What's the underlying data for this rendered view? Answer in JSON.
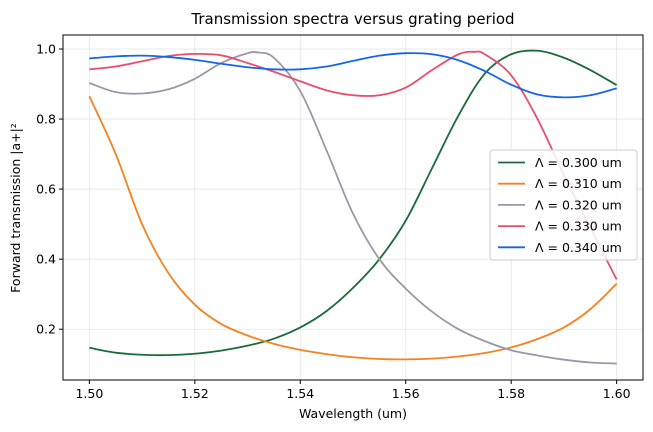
{
  "chart_data": {
    "type": "line",
    "title": "Transmission spectra versus grating period",
    "xlabel": "Wavelength (um)",
    "ylabel": "Forward transmission |a+|²",
    "xlim": [
      1.495,
      1.605
    ],
    "ylim": [
      0.055,
      1.04
    ],
    "xticks": [
      1.5,
      1.52,
      1.54,
      1.56,
      1.58,
      1.6
    ],
    "xtick_labels": [
      "1.50",
      "1.52",
      "1.54",
      "1.56",
      "1.58",
      "1.60"
    ],
    "yticks": [
      0.2,
      0.4,
      0.6,
      0.8,
      1.0
    ],
    "ytick_labels": [
      "0.2",
      "0.4",
      "0.6",
      "0.8",
      "1.0"
    ],
    "grid": true,
    "legend_position": "center-right",
    "series": [
      {
        "name": "Λ = 0.300 um",
        "color": "#1b6b3a",
        "x": [
          1.5,
          1.505,
          1.51,
          1.515,
          1.52,
          1.525,
          1.53,
          1.535,
          1.54,
          1.545,
          1.55,
          1.555,
          1.56,
          1.565,
          1.57,
          1.575,
          1.58,
          1.585,
          1.59,
          1.595,
          1.6
        ],
        "y": [
          0.147,
          0.133,
          0.127,
          0.126,
          0.13,
          0.139,
          0.153,
          0.173,
          0.205,
          0.252,
          0.318,
          0.4,
          0.51,
          0.66,
          0.81,
          0.93,
          0.985,
          0.995,
          0.975,
          0.94,
          0.897
        ]
      },
      {
        "name": "Λ = 0.310 um",
        "color": "#f5821f",
        "x": [
          1.5,
          1.505,
          1.51,
          1.515,
          1.52,
          1.525,
          1.53,
          1.535,
          1.54,
          1.545,
          1.55,
          1.555,
          1.56,
          1.565,
          1.57,
          1.575,
          1.58,
          1.585,
          1.59,
          1.595,
          1.6
        ],
        "y": [
          0.865,
          0.7,
          0.5,
          0.36,
          0.27,
          0.215,
          0.182,
          0.158,
          0.141,
          0.129,
          0.12,
          0.115,
          0.114,
          0.116,
          0.122,
          0.132,
          0.148,
          0.172,
          0.205,
          0.257,
          0.33
        ]
      },
      {
        "name": "Λ = 0.320 um",
        "color": "#9b97a8",
        "x": [
          1.5,
          1.505,
          1.51,
          1.515,
          1.52,
          1.525,
          1.53,
          1.532,
          1.535,
          1.54,
          1.545,
          1.55,
          1.555,
          1.56,
          1.565,
          1.57,
          1.575,
          1.58,
          1.585,
          1.59,
          1.595,
          1.6
        ],
        "y": [
          0.903,
          0.877,
          0.873,
          0.885,
          0.915,
          0.96,
          0.988,
          0.99,
          0.975,
          0.88,
          0.71,
          0.53,
          0.4,
          0.316,
          0.25,
          0.2,
          0.166,
          0.14,
          0.125,
          0.113,
          0.105,
          0.102
        ]
      },
      {
        "name": "Λ = 0.330 um",
        "color": "#e94e6b",
        "x": [
          1.5,
          1.505,
          1.51,
          1.515,
          1.52,
          1.525,
          1.53,
          1.535,
          1.54,
          1.545,
          1.55,
          1.555,
          1.56,
          1.565,
          1.57,
          1.573,
          1.575,
          1.58,
          1.585,
          1.59,
          1.595,
          1.6
        ],
        "y": [
          0.942,
          0.95,
          0.965,
          0.98,
          0.986,
          0.982,
          0.96,
          0.935,
          0.908,
          0.882,
          0.868,
          0.868,
          0.89,
          0.94,
          0.985,
          0.992,
          0.985,
          0.925,
          0.8,
          0.64,
          0.49,
          0.342
        ]
      },
      {
        "name": "Λ = 0.340 um",
        "color": "#1565e8",
        "x": [
          1.5,
          1.505,
          1.51,
          1.515,
          1.52,
          1.525,
          1.53,
          1.535,
          1.54,
          1.545,
          1.55,
          1.555,
          1.56,
          1.565,
          1.57,
          1.575,
          1.58,
          1.585,
          1.59,
          1.595,
          1.6
        ],
        "y": [
          0.973,
          0.979,
          0.981,
          0.977,
          0.969,
          0.958,
          0.948,
          0.942,
          0.942,
          0.95,
          0.966,
          0.981,
          0.988,
          0.985,
          0.968,
          0.937,
          0.898,
          0.87,
          0.862,
          0.868,
          0.888
        ]
      }
    ]
  }
}
